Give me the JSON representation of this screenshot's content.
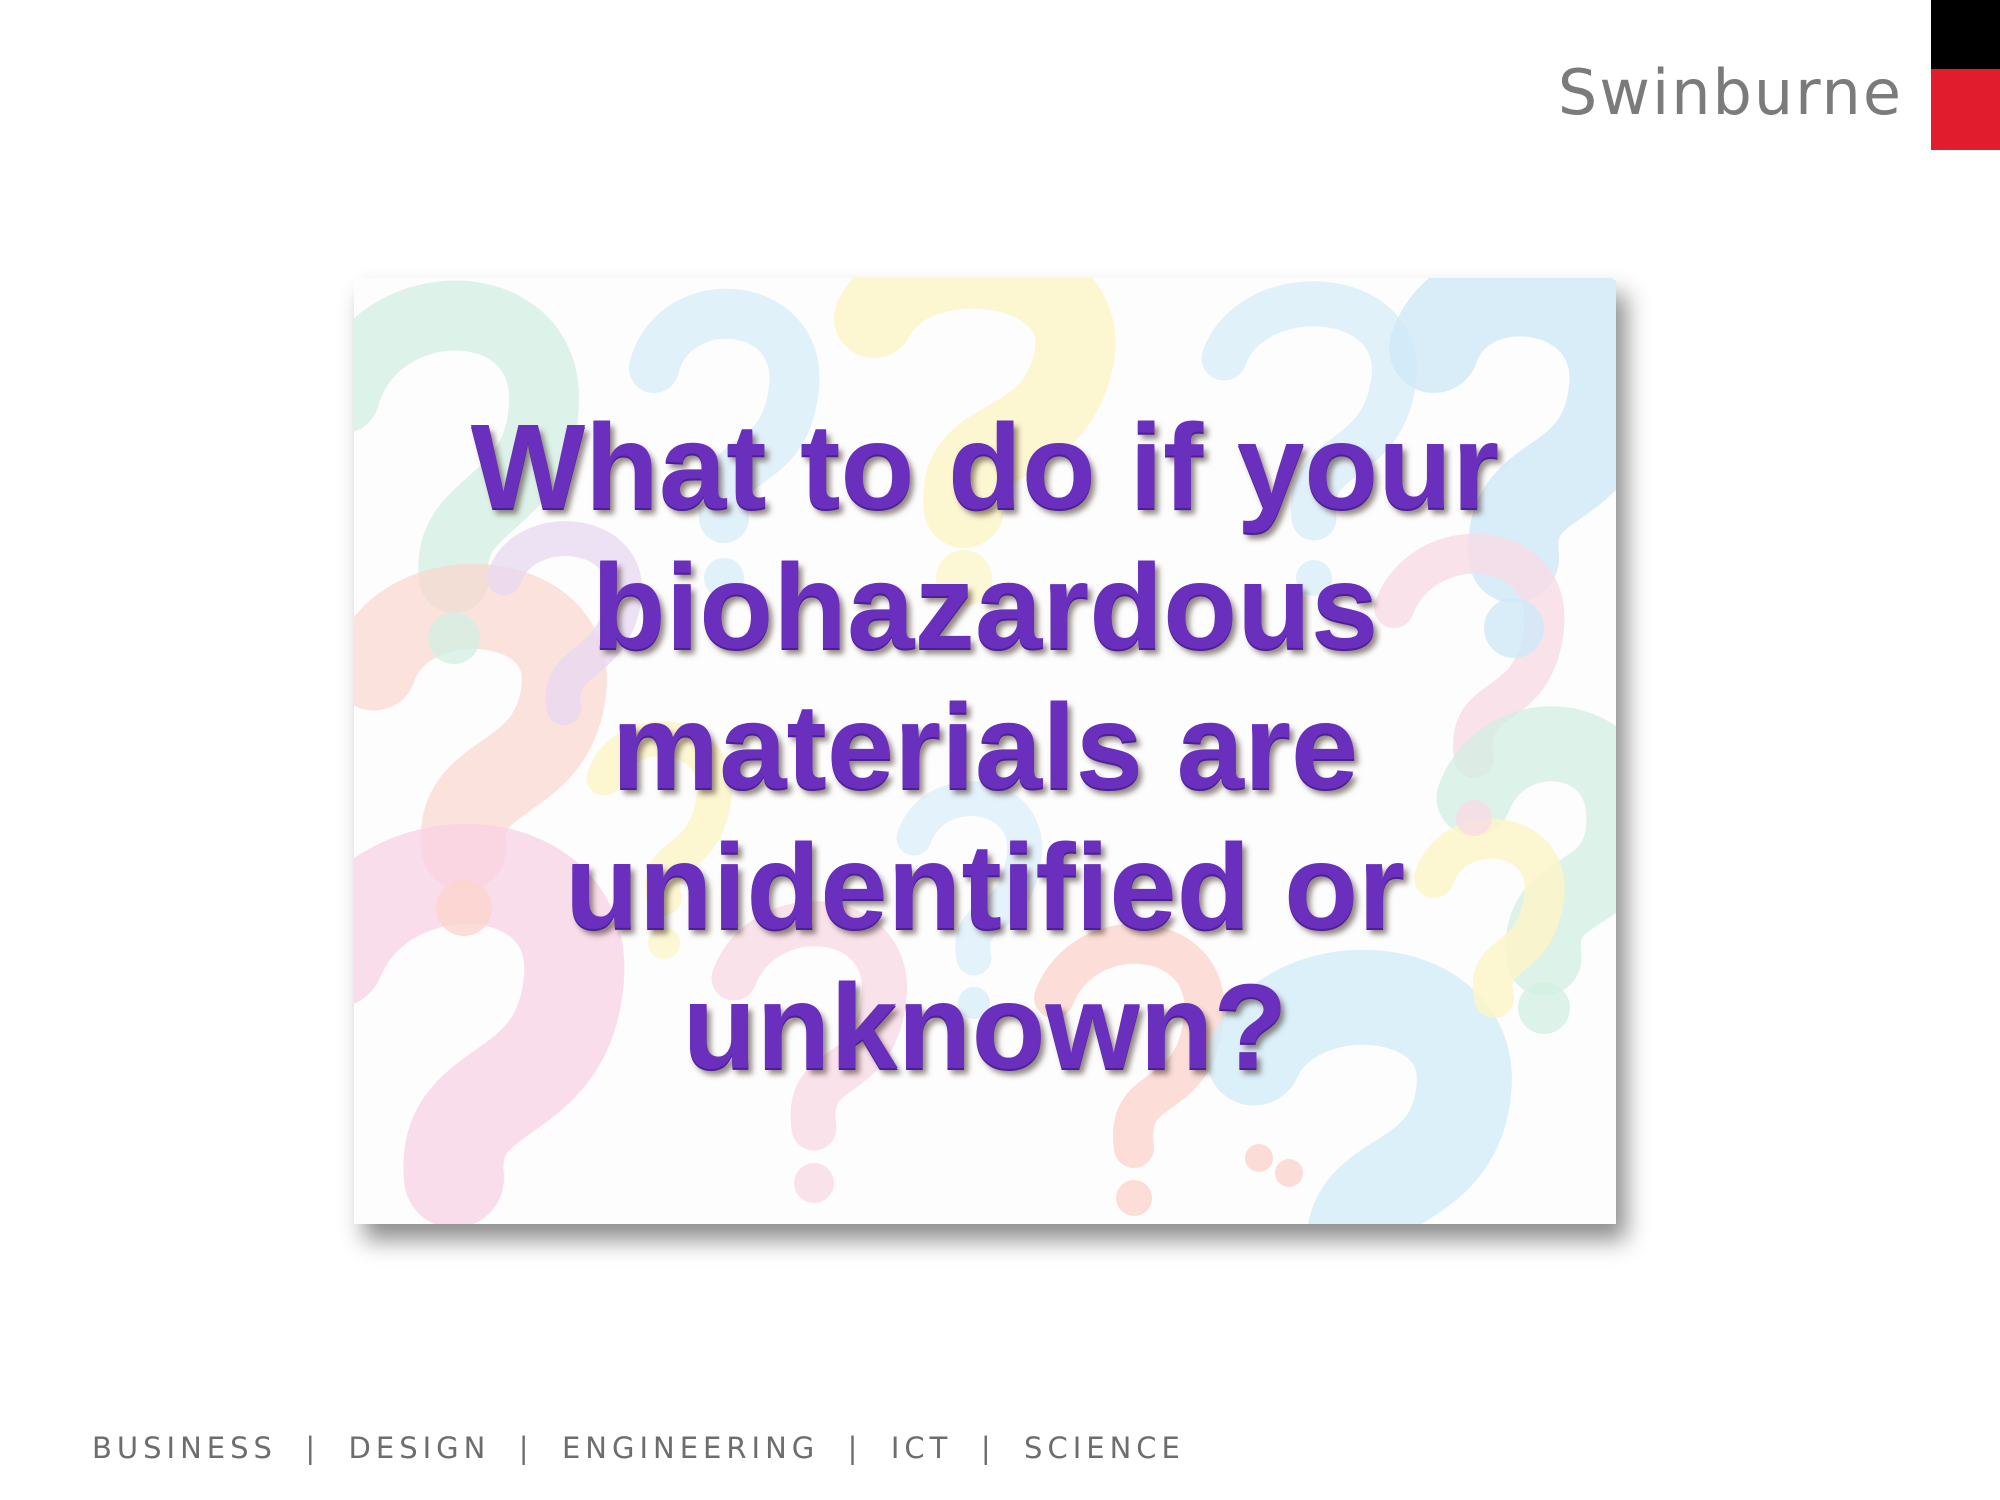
{
  "header": {
    "brand_name": "Swinburne"
  },
  "slide": {
    "question_lines": [
      "What to do if your",
      "biohazardous",
      "materials are",
      "unidentified or",
      "unknown?"
    ]
  },
  "footer": {
    "tagline": "BUSINESS  |  DESIGN  |  ENGINEERING  |  ICT  |  SCIENCE"
  },
  "colors": {
    "brand_red": "#e11d2d",
    "brand_black": "#000000",
    "brand_gray": "#7b7b7b",
    "question_purple": "#6a2fbd"
  }
}
